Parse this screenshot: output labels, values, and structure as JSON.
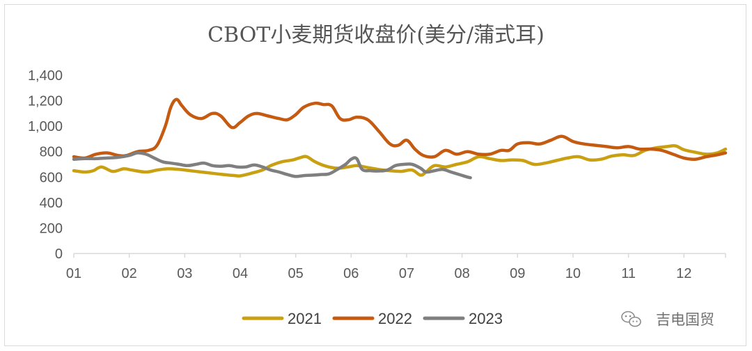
{
  "chart_data": {
    "type": "line",
    "title": "CBOT小麦期货收盘价(美分/蒲式耳)",
    "xlabel": "",
    "ylabel": "",
    "x_ticks": [
      "01",
      "02",
      "03",
      "04",
      "05",
      "06",
      "07",
      "08",
      "09",
      "10",
      "11",
      "12"
    ],
    "xlim": [
      1,
      12.75
    ],
    "ylim": [
      0,
      1400
    ],
    "y_ticks": [
      0,
      200,
      400,
      600,
      800,
      1000,
      1200,
      1400
    ],
    "y_tick_labels": [
      "0",
      "200",
      "400",
      "600",
      "800",
      "1,000",
      "1,200",
      "1,400"
    ],
    "grid": false,
    "legend": "bottom",
    "series": [
      {
        "name": "2021",
        "color": "#C9A011",
        "x": [
          1.0,
          1.2,
          1.35,
          1.5,
          1.7,
          1.9,
          2.05,
          2.3,
          2.5,
          2.7,
          2.9,
          3.1,
          3.3,
          3.5,
          3.7,
          3.9,
          4.0,
          4.2,
          4.4,
          4.55,
          4.75,
          4.95,
          5.1,
          5.2,
          5.35,
          5.55,
          5.75,
          5.95,
          6.1,
          6.3,
          6.5,
          6.7,
          6.9,
          7.1,
          7.25,
          7.35,
          7.5,
          7.7,
          7.9,
          8.1,
          8.3,
          8.5,
          8.7,
          8.9,
          9.1,
          9.3,
          9.5,
          9.7,
          9.9,
          10.1,
          10.3,
          10.5,
          10.7,
          10.9,
          11.1,
          11.3,
          11.5,
          11.7,
          11.85,
          12.0,
          12.2,
          12.4,
          12.6,
          12.75
        ],
        "values": [
          650,
          640,
          650,
          680,
          645,
          665,
          655,
          640,
          655,
          665,
          660,
          650,
          640,
          630,
          620,
          612,
          610,
          630,
          655,
          690,
          720,
          735,
          755,
          760,
          720,
          685,
          670,
          680,
          690,
          675,
          660,
          650,
          645,
          655,
          615,
          640,
          690,
          680,
          700,
          720,
          760,
          745,
          730,
          735,
          730,
          700,
          710,
          730,
          750,
          760,
          735,
          740,
          765,
          775,
          770,
          810,
          830,
          840,
          845,
          815,
          795,
          780,
          790,
          820
        ]
      },
      {
        "name": "2022",
        "color": "#C55A11",
        "x": [
          1.0,
          1.2,
          1.4,
          1.6,
          1.8,
          1.95,
          2.15,
          2.35,
          2.5,
          2.65,
          2.75,
          2.85,
          2.95,
          3.1,
          3.3,
          3.5,
          3.65,
          3.85,
          4.0,
          4.15,
          4.3,
          4.5,
          4.7,
          4.85,
          5.0,
          5.15,
          5.35,
          5.5,
          5.65,
          5.8,
          5.95,
          6.1,
          6.3,
          6.5,
          6.7,
          6.85,
          7.0,
          7.15,
          7.3,
          7.5,
          7.7,
          7.9,
          8.1,
          8.3,
          8.5,
          8.7,
          8.85,
          9.0,
          9.2,
          9.4,
          9.6,
          9.8,
          10.0,
          10.2,
          10.4,
          10.6,
          10.8,
          11.0,
          11.2,
          11.4,
          11.6,
          11.8,
          12.0,
          12.2,
          12.4,
          12.6,
          12.75
        ],
        "values": [
          760,
          750,
          780,
          790,
          770,
          770,
          800,
          810,
          850,
          1000,
          1150,
          1210,
          1160,
          1090,
          1060,
          1100,
          1080,
          990,
          1030,
          1080,
          1100,
          1080,
          1060,
          1050,
          1090,
          1150,
          1180,
          1170,
          1160,
          1060,
          1050,
          1070,
          1050,
          960,
          860,
          850,
          890,
          820,
          770,
          760,
          810,
          780,
          800,
          780,
          780,
          810,
          810,
          860,
          870,
          860,
          890,
          920,
          880,
          860,
          850,
          840,
          830,
          840,
          820,
          820,
          810,
          780,
          750,
          740,
          760,
          775,
          790
        ]
      },
      {
        "name": "2023",
        "color": "#7F7F7F",
        "x": [
          1.0,
          1.2,
          1.4,
          1.6,
          1.8,
          2.0,
          2.15,
          2.3,
          2.45,
          2.6,
          2.75,
          2.9,
          3.05,
          3.2,
          3.35,
          3.5,
          3.65,
          3.8,
          3.95,
          4.1,
          4.25,
          4.4,
          4.55,
          4.7,
          4.85,
          5.0,
          5.15,
          5.3,
          5.45,
          5.6,
          5.75,
          5.9,
          6.0,
          6.1,
          6.2,
          6.35,
          6.5,
          6.65,
          6.8,
          6.95,
          7.1,
          7.25,
          7.35,
          7.5,
          7.65,
          7.8,
          7.95,
          8.1,
          8.15
        ],
        "values": [
          740,
          745,
          745,
          750,
          755,
          770,
          790,
          780,
          750,
          720,
          710,
          700,
          690,
          700,
          710,
          690,
          685,
          690,
          680,
          680,
          695,
          680,
          655,
          640,
          620,
          605,
          612,
          615,
          620,
          625,
          660,
          700,
          740,
          745,
          660,
          650,
          648,
          655,
          690,
          700,
          700,
          670,
          640,
          650,
          660,
          640,
          620,
          600,
          595
        ]
      }
    ],
    "watermark": {
      "icon": "wechat-icon",
      "text": "吉电国贸"
    }
  }
}
